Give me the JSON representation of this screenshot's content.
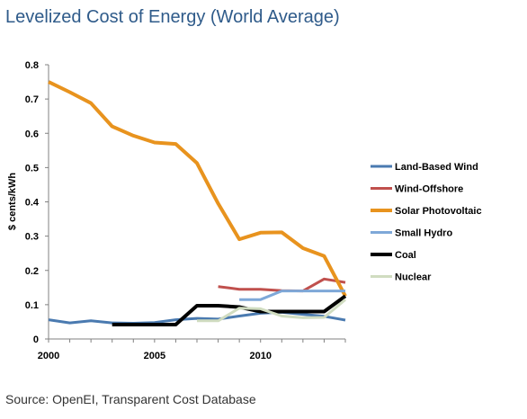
{
  "title": "Levelized Cost of Energy (World Average)",
  "source": "Source: OpenEI, Transparent Cost Database",
  "chart_data": {
    "type": "line",
    "title": "Levelized Cost of Energy (World Average)",
    "xlabel": "",
    "ylabel": "$ cents/kWh",
    "xlim": [
      2000,
      2014
    ],
    "ylim": [
      0,
      0.8
    ],
    "x_ticks": [
      "2000",
      "2005",
      "2010"
    ],
    "y_ticks": [
      "0",
      "0.1",
      "0.2",
      "0.3",
      "0.4",
      "0.5",
      "0.6",
      "0.7",
      "0.8"
    ],
    "grid": false,
    "legend_position": "right",
    "series": [
      {
        "name": "Land-Based Wind",
        "color": "#4a7ab0",
        "width": 3,
        "points": [
          [
            2000,
            0.056
          ],
          [
            2001,
            0.047
          ],
          [
            2002,
            0.053
          ],
          [
            2003,
            0.047
          ],
          [
            2004,
            0.046
          ],
          [
            2005,
            0.048
          ],
          [
            2006,
            0.056
          ],
          [
            2007,
            0.06
          ],
          [
            2008,
            0.058
          ],
          [
            2009,
            0.067
          ],
          [
            2010,
            0.075
          ],
          [
            2011,
            0.078
          ],
          [
            2012,
            0.072
          ],
          [
            2013,
            0.066
          ],
          [
            2014,
            0.055
          ]
        ]
      },
      {
        "name": "Wind-Offshore",
        "color": "#c0504d",
        "width": 3,
        "points": [
          [
            2008,
            0.153
          ],
          [
            2009,
            0.145
          ],
          [
            2010,
            0.145
          ],
          [
            2011,
            0.141
          ],
          [
            2012,
            0.14
          ],
          [
            2013,
            0.175
          ],
          [
            2014,
            0.165
          ]
        ]
      },
      {
        "name": "Solar Photovoltaic",
        "color": "#e8931e",
        "width": 4,
        "points": [
          [
            2000,
            0.75
          ],
          [
            2001,
            0.72
          ],
          [
            2002,
            0.688
          ],
          [
            2003,
            0.62
          ],
          [
            2004,
            0.593
          ],
          [
            2005,
            0.573
          ],
          [
            2006,
            0.569
          ],
          [
            2007,
            0.513
          ],
          [
            2008,
            0.395
          ],
          [
            2009,
            0.291
          ],
          [
            2010,
            0.31
          ],
          [
            2011,
            0.311
          ],
          [
            2012,
            0.265
          ],
          [
            2013,
            0.242
          ],
          [
            2014,
            0.125
          ]
        ]
      },
      {
        "name": "Small Hydro",
        "color": "#7ea8d8",
        "width": 3,
        "points": [
          [
            2009,
            0.115
          ],
          [
            2010,
            0.115
          ],
          [
            2011,
            0.14
          ],
          [
            2012,
            0.14
          ],
          [
            2013,
            0.14
          ],
          [
            2014,
            0.14
          ]
        ]
      },
      {
        "name": "Coal",
        "color": "#000000",
        "width": 4,
        "points": [
          [
            2003,
            0.042
          ],
          [
            2004,
            0.042
          ],
          [
            2005,
            0.042
          ],
          [
            2006,
            0.042
          ],
          [
            2007,
            0.097
          ],
          [
            2008,
            0.097
          ],
          [
            2009,
            0.093
          ],
          [
            2010,
            0.08
          ],
          [
            2011,
            0.08
          ],
          [
            2012,
            0.08
          ],
          [
            2013,
            0.08
          ],
          [
            2014,
            0.125
          ]
        ]
      },
      {
        "name": "Nuclear",
        "color": "#d0dcc0",
        "width": 3,
        "points": [
          [
            2007,
            0.053
          ],
          [
            2008,
            0.053
          ],
          [
            2009,
            0.09
          ],
          [
            2010,
            0.088
          ],
          [
            2011,
            0.067
          ],
          [
            2012,
            0.062
          ],
          [
            2013,
            0.063
          ],
          [
            2014,
            0.115
          ]
        ]
      }
    ]
  }
}
